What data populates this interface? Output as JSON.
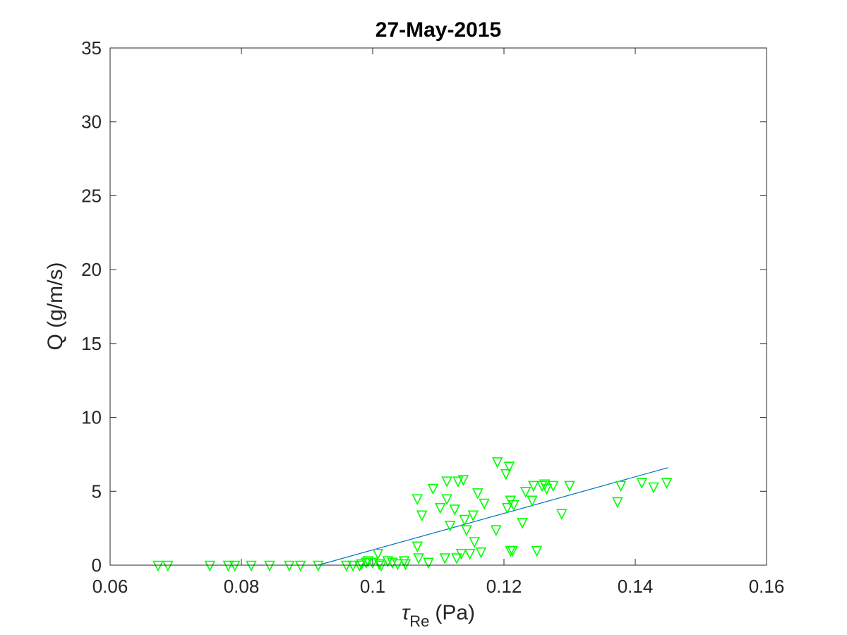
{
  "chart_data": {
    "type": "scatter",
    "title": "27-May-2015",
    "xlabel": {
      "symbol": "τ",
      "subscript": "Re",
      "unit": "(Pa)"
    },
    "ylabel": "Q (g/m/s)",
    "xlim": [
      0.06,
      0.16
    ],
    "ylim": [
      0,
      35
    ],
    "xticks": [
      0.06,
      0.08,
      0.1,
      0.12,
      0.14,
      0.16
    ],
    "xtick_labels": [
      "0.06",
      "0.08",
      "0.1",
      "0.12",
      "0.14",
      "0.16"
    ],
    "yticks": [
      0,
      5,
      10,
      15,
      20,
      25,
      30,
      35
    ],
    "ytick_labels": [
      "0",
      "5",
      "10",
      "15",
      "20",
      "25",
      "30",
      "35"
    ],
    "grid": false,
    "marker": "triangle-down",
    "colors": {
      "points": "#00ff00",
      "fit": "#0072bd",
      "axes": "#262626"
    },
    "series": [
      {
        "points": [
          [
            0.0673,
            0
          ],
          [
            0.0688,
            0
          ],
          [
            0.0752,
            0
          ],
          [
            0.078,
            0
          ],
          [
            0.079,
            0
          ],
          [
            0.0815,
            0
          ],
          [
            0.0843,
            0
          ],
          [
            0.0873,
            0
          ],
          [
            0.089,
            0
          ],
          [
            0.0917,
            0
          ],
          [
            0.096,
            0
          ],
          [
            0.097,
            0
          ],
          [
            0.098,
            0
          ],
          [
            0.0983,
            0.1
          ],
          [
            0.099,
            0.2
          ],
          [
            0.0993,
            0.3
          ],
          [
            0.1,
            0.2
          ],
          [
            0.1008,
            0.8
          ],
          [
            0.101,
            0.1
          ],
          [
            0.1013,
            0
          ],
          [
            0.1023,
            0.3
          ],
          [
            0.103,
            0.2
          ],
          [
            0.1038,
            0.1
          ],
          [
            0.1048,
            0.3
          ],
          [
            0.105,
            0.1
          ],
          [
            0.1068,
            1.3
          ],
          [
            0.107,
            0.5
          ],
          [
            0.1068,
            4.5
          ],
          [
            0.1075,
            3.4
          ],
          [
            0.1085,
            0.2
          ],
          [
            0.1092,
            5.2
          ],
          [
            0.1103,
            3.9
          ],
          [
            0.111,
            0.5
          ],
          [
            0.1113,
            4.5
          ],
          [
            0.1113,
            5.7
          ],
          [
            0.1118,
            2.7
          ],
          [
            0.1125,
            3.8
          ],
          [
            0.1128,
            0.5
          ],
          [
            0.113,
            5.7
          ],
          [
            0.1135,
            0.8
          ],
          [
            0.1138,
            5.8
          ],
          [
            0.114,
            3.1
          ],
          [
            0.1143,
            2.4
          ],
          [
            0.1148,
            0.8
          ],
          [
            0.1153,
            3.4
          ],
          [
            0.1155,
            1.6
          ],
          [
            0.116,
            4.9
          ],
          [
            0.1165,
            0.9
          ],
          [
            0.117,
            4.2
          ],
          [
            0.1188,
            2.4
          ],
          [
            0.119,
            7.0
          ],
          [
            0.1203,
            6.2
          ],
          [
            0.1205,
            3.9
          ],
          [
            0.1208,
            6.7
          ],
          [
            0.121,
            4.4
          ],
          [
            0.121,
            1.0
          ],
          [
            0.1213,
            1.0
          ],
          [
            0.1215,
            4.1
          ],
          [
            0.1228,
            2.9
          ],
          [
            0.1233,
            5.0
          ],
          [
            0.1243,
            4.4
          ],
          [
            0.1245,
            5.4
          ],
          [
            0.125,
            1.0
          ],
          [
            0.1258,
            5.4
          ],
          [
            0.1262,
            5.5
          ],
          [
            0.1265,
            5.2
          ],
          [
            0.1275,
            5.4
          ],
          [
            0.1288,
            3.5
          ],
          [
            0.13,
            5.4
          ],
          [
            0.1373,
            4.3
          ],
          [
            0.1378,
            5.4
          ],
          [
            0.141,
            5.6
          ],
          [
            0.1428,
            5.3
          ],
          [
            0.1448,
            5.6
          ]
        ]
      }
    ],
    "fit_line": {
      "x": [
        0.0917,
        0.145
      ],
      "y": [
        0,
        6.6
      ]
    }
  }
}
